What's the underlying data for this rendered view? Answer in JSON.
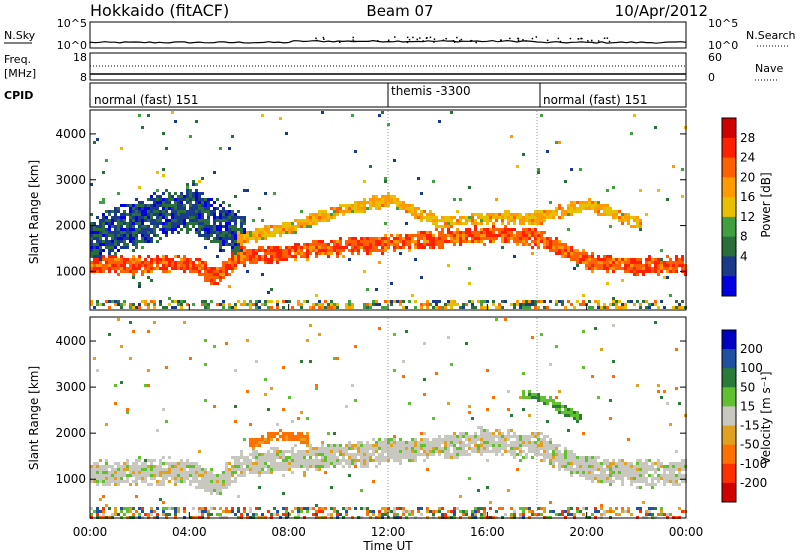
{
  "header": {
    "station": "Hokkaido (fitACF)",
    "beam": "Beam 07",
    "date": "10/Apr/2012"
  },
  "status_panels": {
    "nsky_label": "N.Sky",
    "nsearch_label": "N.Search",
    "noise_ticks": [
      "10^5",
      "10^0"
    ],
    "freq_label": "Freq.",
    "freq_unit": "[MHz]",
    "freq_ticks": [
      "18",
      "8"
    ],
    "nave_label": "Nave",
    "nave_ticks": [
      "60",
      "0"
    ],
    "cpid_label": "CPID",
    "cpid_segments": [
      {
        "label": "normal (fast) 151",
        "start": "00:00",
        "end": "12:00"
      },
      {
        "label": "themis -3300",
        "start": "12:00",
        "end": "18:00"
      },
      {
        "label": "normal (fast) 151",
        "start": "18:00",
        "end": "24:00"
      }
    ]
  },
  "colorbars": {
    "power": {
      "label": "Power [dB]",
      "ticks": [
        "28",
        "24",
        "20",
        "16",
        "12",
        "8",
        "4"
      ],
      "colors": [
        "#d00000",
        "#ff2000",
        "#ff6000",
        "#ff9a00",
        "#e8c000",
        "#40a040",
        "#2a6f3a",
        "#1a3a8a",
        "#0000e0"
      ]
    },
    "velocity": {
      "label": "Velocity [m s⁻¹]",
      "ticks": [
        "200",
        "100",
        "50",
        "15",
        "-15",
        "-50",
        "-100",
        "-200"
      ],
      "colors": [
        "#0000c0",
        "#2050a0",
        "#2a7a3a",
        "#60c030",
        "#c8c8c0",
        "#e0a020",
        "#ff7000",
        "#ff3000",
        "#d00000"
      ]
    }
  },
  "axes": {
    "ylabel": "Slant Range [km]",
    "xlabel": "Time UT",
    "yticks": [
      "1000",
      "2000",
      "3000",
      "4000"
    ],
    "xticks": [
      "00:00",
      "04:00",
      "08:00",
      "12:00",
      "16:00",
      "20:00",
      "00:00"
    ]
  },
  "chart_data": [
    {
      "type": "heatmap",
      "title": "Power",
      "x_range_hours": [
        0,
        24
      ],
      "y_range_km": [
        180,
        4500
      ],
      "value_range_db": [
        0,
        32
      ],
      "description_bands": [
        {
          "name": "main",
          "x": [
            0,
            2,
            4,
            5,
            6,
            8,
            10,
            12,
            14,
            16,
            18,
            20,
            22,
            24
          ],
          "y_center": [
            1150,
            1180,
            1200,
            900,
            1350,
            1450,
            1550,
            1650,
            1750,
            1850,
            1750,
            1250,
            1150,
            1150
          ],
          "width_km": 350,
          "level_db": 24
        },
        {
          "name": "upper",
          "x": [
            6,
            8,
            10,
            12,
            14,
            16,
            18,
            20,
            22
          ],
          "y_center": [
            1750,
            2000,
            2350,
            2600,
            2100,
            2200,
            2200,
            2500,
            2100
          ],
          "width_km": 250,
          "level_db": 18
        },
        {
          "name": "morning-blue",
          "x": [
            0,
            1,
            2,
            3,
            4,
            5,
            6
          ],
          "y_center": [
            1700,
            1900,
            2100,
            2250,
            2400,
            2100,
            1800
          ],
          "width_km": 900,
          "level_db": 6
        }
      ]
    },
    {
      "type": "heatmap",
      "title": "Velocity",
      "x_range_hours": [
        0,
        24
      ],
      "y_range_km": [
        180,
        4500
      ],
      "value_range_ms": [
        -250,
        250
      ],
      "description_bands": [
        {
          "name": "main",
          "x": [
            0,
            2,
            4,
            5,
            6,
            8,
            10,
            12,
            14,
            16,
            18,
            20,
            22,
            24
          ],
          "y_center": [
            1150,
            1180,
            1200,
            900,
            1350,
            1450,
            1550,
            1650,
            1750,
            1850,
            1750,
            1250,
            1150,
            1150
          ],
          "width_km": 500,
          "level_ms": 0
        },
        {
          "name": "orange",
          "x": [
            6.5,
            7.5,
            8.5
          ],
          "y_center": [
            1800,
            2000,
            1900
          ],
          "width_km": 200,
          "level_ms": -60
        },
        {
          "name": "green",
          "x": [
            17.5,
            18.5,
            19.5
          ],
          "y_center": [
            2900,
            2700,
            2400
          ],
          "width_km": 200,
          "level_ms": 50
        }
      ]
    }
  ]
}
